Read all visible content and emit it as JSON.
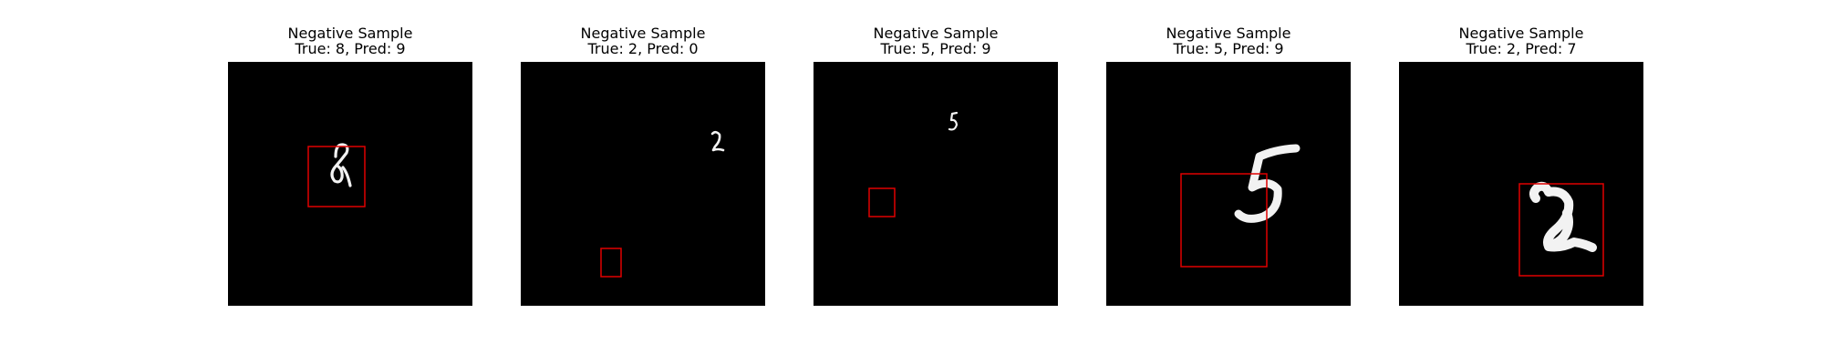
{
  "panels": [
    {
      "title": "Negative Sample",
      "subtitle": "True: 8, Pred: 9",
      "true_label": 8,
      "pred_label": 9,
      "digit_shape": "8-icon"
    },
    {
      "title": "Negative Sample",
      "subtitle": "True: 2, Pred: 0",
      "true_label": 2,
      "pred_label": 0,
      "digit_shape": "2-icon"
    },
    {
      "title": "Negative Sample",
      "subtitle": "True: 5, Pred: 9",
      "true_label": 5,
      "pred_label": 9,
      "digit_shape": "5-icon"
    },
    {
      "title": "Negative Sample",
      "subtitle": "True: 5, Pred: 9",
      "true_label": 5,
      "pred_label": 9,
      "digit_shape": "5-icon"
    },
    {
      "title": "Negative Sample",
      "subtitle": "True: 2, Pred: 7",
      "true_label": 2,
      "pred_label": 7,
      "digit_shape": "2-icon"
    }
  ],
  "colors": {
    "background": "#ffffff",
    "image_background": "#000000",
    "digit_stroke": "#f2f2f2",
    "bounding_box": "#e00000"
  }
}
